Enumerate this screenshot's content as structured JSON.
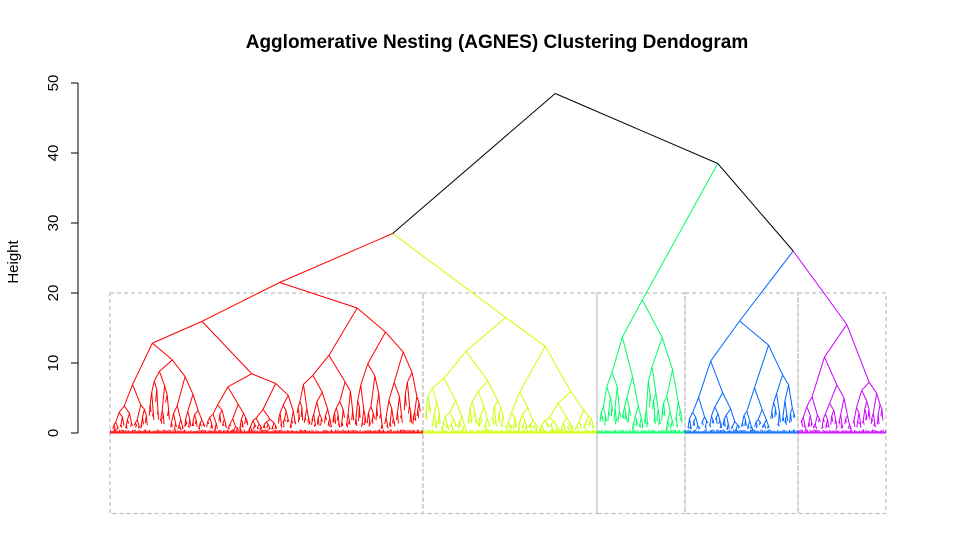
{
  "chart_data": {
    "type": "dendrogram",
    "title": "Agglomerative Nesting (AGNES) Clustering Dendogram",
    "xlabel": "",
    "ylabel": "Height",
    "ylim": [
      0,
      50
    ],
    "yticks": [
      0,
      10,
      20,
      30,
      40,
      50
    ],
    "cut_height": 20,
    "clusters": [
      {
        "id": 1,
        "color": "#FF0000"
      },
      {
        "id": 2,
        "color": "#CCFF00"
      },
      {
        "id": 3,
        "color": "#00FF66"
      },
      {
        "id": 4,
        "color": "#0066FF"
      },
      {
        "id": 5,
        "color": "#CC00FF"
      }
    ],
    "tree": {
      "height": 48.5,
      "color": "#000000",
      "children": [
        {
          "height": 28.5,
          "color": "#000000",
          "children": [
            {
              "height": 21.5,
              "cluster": 1
            },
            {
              "height": 16.5,
              "cluster": 2
            }
          ]
        },
        {
          "height": 38.5,
          "color": "#000000",
          "children": [
            {
              "height": 19.0,
              "cluster": 3
            },
            {
              "height": 26.0,
              "color": "#000000",
              "children": [
                {
                  "height": 16.0,
                  "cluster": 4
                },
                {
                  "height": 15.5,
                  "cluster": 5
                }
              ]
            }
          ]
        }
      ]
    },
    "cluster_boxes": {
      "lower": -11.5,
      "upper": 20,
      "color": "#BEBEBE"
    }
  }
}
